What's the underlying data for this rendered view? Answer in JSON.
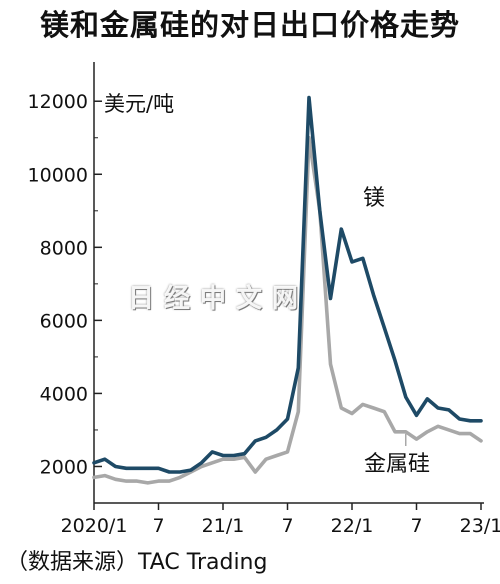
{
  "title": "镁和金属硅的对日出口价格走势",
  "unit_label": "美元/吨",
  "source": "（数据来源）TAC Trading",
  "watermark": "日经中文网",
  "colors": {
    "magnesium": "#1e4a66",
    "silicon": "#a8a8a8",
    "axis": "#222222"
  },
  "chart_data": {
    "type": "line",
    "title": "镁和金属硅的对日出口价格走势",
    "ylabel": "美元/吨",
    "ylim": [
      1000,
      12800
    ],
    "yticks": [
      2000,
      4000,
      6000,
      8000,
      10000,
      12000
    ],
    "x_tick_labels": [
      "2020/1",
      "7",
      "21/1",
      "7",
      "22/1",
      "7",
      "23/1"
    ],
    "x_ticks": [
      "2020-01",
      "2020-07",
      "2021-01",
      "2021-07",
      "2022-01",
      "2022-07",
      "2023-01"
    ],
    "series": [
      {
        "name": "镁",
        "x": [
          "2020-01",
          "2020-02",
          "2020-03",
          "2020-04",
          "2020-05",
          "2020-06",
          "2020-07",
          "2020-08",
          "2020-09",
          "2020-10",
          "2020-11",
          "2020-12",
          "2021-01",
          "2021-02",
          "2021-03",
          "2021-04",
          "2021-05",
          "2021-06",
          "2021-07",
          "2021-08",
          "2021-09",
          "2021-10",
          "2021-11",
          "2021-12",
          "2022-01",
          "2022-02",
          "2022-03",
          "2022-04",
          "2022-05",
          "2022-06",
          "2022-07",
          "2022-08",
          "2022-09",
          "2022-10",
          "2022-11",
          "2022-12",
          "2023-01"
        ],
        "values": [
          2100,
          2200,
          2000,
          1950,
          1950,
          1950,
          1950,
          1850,
          1850,
          1900,
          2100,
          2400,
          2300,
          2300,
          2350,
          2700,
          2800,
          3000,
          3300,
          4700,
          12100,
          9000,
          6600,
          8500,
          7600,
          7700,
          6700,
          5800,
          4900,
          3900,
          3400,
          3850,
          3600,
          3550,
          3300,
          3250,
          3250
        ]
      },
      {
        "name": "金属硅",
        "x": [
          "2020-01",
          "2020-02",
          "2020-03",
          "2020-04",
          "2020-05",
          "2020-06",
          "2020-07",
          "2020-08",
          "2020-09",
          "2020-10",
          "2020-11",
          "2020-12",
          "2021-01",
          "2021-02",
          "2021-03",
          "2021-04",
          "2021-05",
          "2021-06",
          "2021-07",
          "2021-08",
          "2021-09",
          "2021-10",
          "2021-11",
          "2021-12",
          "2022-01",
          "2022-02",
          "2022-03",
          "2022-04",
          "2022-05",
          "2022-06",
          "2022-07",
          "2022-08",
          "2022-09",
          "2022-10",
          "2022-11",
          "2022-12",
          "2023-01"
        ],
        "values": [
          1700,
          1750,
          1650,
          1600,
          1600,
          1550,
          1600,
          1600,
          1700,
          1850,
          2000,
          2100,
          2200,
          2200,
          2250,
          1850,
          2200,
          2300,
          2400,
          3500,
          11000,
          9000,
          4800,
          3600,
          3450,
          3700,
          3600,
          3500,
          2950,
          2950,
          2750,
          2950,
          3100,
          3000,
          2900,
          2900,
          2700
        ]
      }
    ]
  }
}
